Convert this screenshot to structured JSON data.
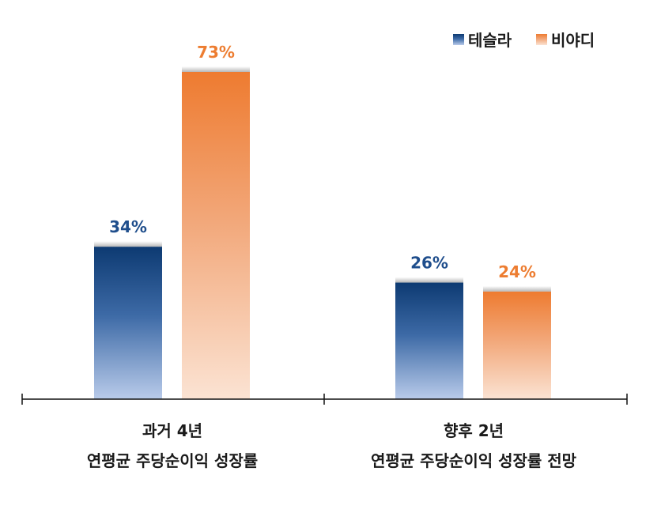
{
  "chart_data": {
    "type": "bar",
    "categories": [
      [
        "과거 4년",
        "연평균 주당순이익 성장률"
      ],
      [
        "향후 2년",
        "연평균 주당순이익 성장률 전망"
      ]
    ],
    "series": [
      {
        "name": "테슬라",
        "values": [
          34,
          26
        ],
        "labels": [
          "34%",
          "26%"
        ],
        "color": "#1f4e8c"
      },
      {
        "name": "비야디",
        "values": [
          73,
          24
        ],
        "labels": [
          "73%",
          "24%"
        ],
        "color": "#ed7d31"
      }
    ],
    "ylim": [
      0,
      82
    ],
    "grid": false,
    "legend_position": "top-right"
  }
}
